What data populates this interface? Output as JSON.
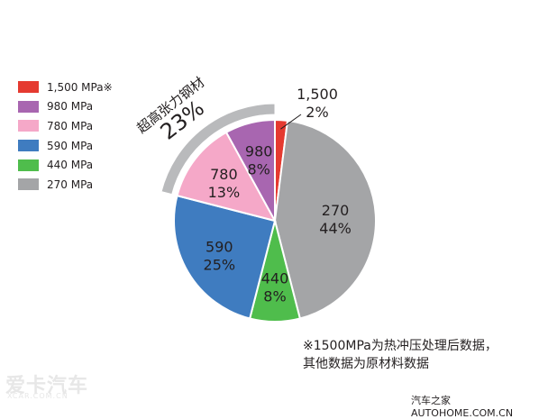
{
  "chart_data": {
    "type": "pie",
    "title": "",
    "slices": [
      {
        "label": "1,500",
        "percent_label": "2%",
        "value": 2,
        "color": "#e53a30"
      },
      {
        "label": "270",
        "percent_label": "44%",
        "value": 44,
        "color": "#a4a5a7"
      },
      {
        "label": "440",
        "percent_label": "8%",
        "value": 8,
        "color": "#4fbd4c"
      },
      {
        "label": "590",
        "percent_label": "25%",
        "value": 25,
        "color": "#3f7cc0"
      },
      {
        "label": "780",
        "percent_label": "13%",
        "value": 13,
        "color": "#f5a8c8"
      },
      {
        "label": "980",
        "percent_label": "8%",
        "value": 8,
        "color": "#a866b0"
      }
    ],
    "legend": [
      {
        "label": "1,500 MPa※",
        "color": "#e53a30"
      },
      {
        "label": "980 MPa",
        "color": "#a866b0"
      },
      {
        "label": "780 MPa",
        "color": "#f5a8c8"
      },
      {
        "label": "590 MPa",
        "color": "#3f7cc0"
      },
      {
        "label": "440 MPa",
        "color": "#4fbd4c"
      },
      {
        "label": "270 MPa",
        "color": "#a4a5a7"
      }
    ],
    "legend_position": "top-left",
    "annotation": {
      "text": "超高张力钢材",
      "value": "23%"
    }
  },
  "footnote": {
    "line1": "※1500MPa为热冲压处理后数据，",
    "line2": "其他数据为原材料数据"
  },
  "watermarks": {
    "left": "爱卡汽车",
    "left_sub": "XCAR.COM.CN",
    "right": "汽车之家  AUTOHOME.COM.CN"
  }
}
